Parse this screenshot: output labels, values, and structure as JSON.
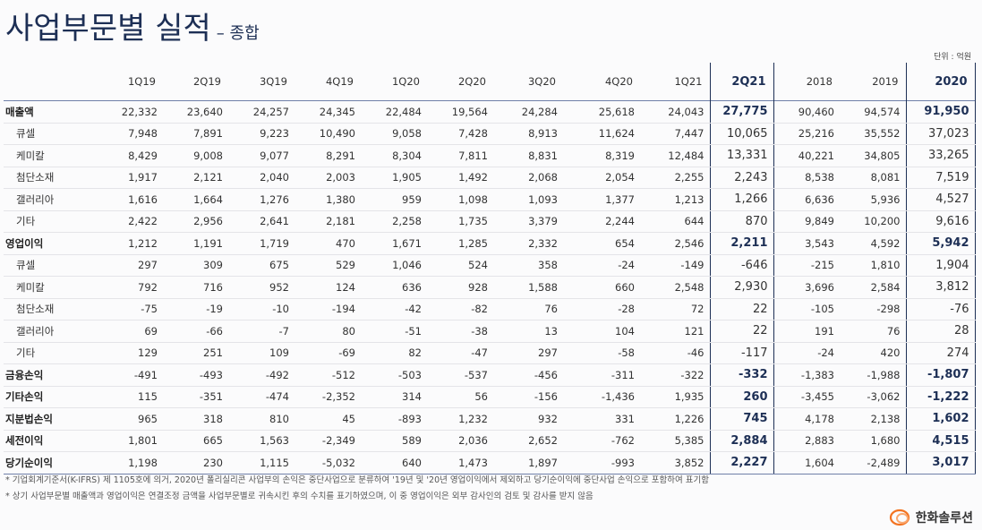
{
  "header": {
    "title": "사업부문별 실적",
    "subtitle": "– 종합",
    "unit": "단위 : 억원"
  },
  "table": {
    "columns": [
      "1Q19",
      "2Q19",
      "3Q19",
      "4Q19",
      "1Q20",
      "2Q20",
      "3Q20",
      "4Q20",
      "1Q21",
      "2Q21",
      "2018",
      "2019",
      "2020"
    ],
    "rows": [
      {
        "label": "매출액",
        "values": [
          "22,332",
          "23,640",
          "24,257",
          "24,345",
          "22,484",
          "19,564",
          "24,284",
          "25,618",
          "24,043",
          "27,775",
          "90,460",
          "94,574",
          "91,950"
        ],
        "items": [
          {
            "label": "큐셀",
            "values": [
              "7,948",
              "7,891",
              "9,223",
              "10,490",
              "9,058",
              "7,428",
              "8,913",
              "11,624",
              "7,447",
              "10,065",
              "25,216",
              "35,552",
              "37,023"
            ]
          },
          {
            "label": "케미칼",
            "values": [
              "8,429",
              "9,008",
              "9,077",
              "8,291",
              "8,304",
              "7,811",
              "8,831",
              "8,319",
              "12,484",
              "13,331",
              "40,221",
              "34,805",
              "33,265"
            ]
          },
          {
            "label": "첨단소재",
            "values": [
              "1,917",
              "2,121",
              "2,040",
              "2,003",
              "1,905",
              "1,492",
              "2,068",
              "2,054",
              "2,255",
              "2,243",
              "8,538",
              "8,081",
              "7,519"
            ]
          },
          {
            "label": "갤러리아",
            "values": [
              "1,616",
              "1,664",
              "1,276",
              "1,380",
              "959",
              "1,098",
              "1,093",
              "1,377",
              "1,213",
              "1,266",
              "6,636",
              "5,936",
              "4,527"
            ]
          },
          {
            "label": "기타",
            "values": [
              "2,422",
              "2,956",
              "2,641",
              "2,181",
              "2,258",
              "1,735",
              "3,379",
              "2,244",
              "644",
              "870",
              "9,849",
              "10,200",
              "9,616"
            ]
          }
        ]
      },
      {
        "label": "영업이익",
        "values": [
          "1,212",
          "1,191",
          "1,719",
          "470",
          "1,671",
          "1,285",
          "2,332",
          "654",
          "2,546",
          "2,211",
          "3,543",
          "4,592",
          "5,942"
        ],
        "items": [
          {
            "label": "큐셀",
            "values": [
              "297",
              "309",
              "675",
              "529",
              "1,046",
              "524",
              "358",
              "-24",
              "-149",
              "-646",
              "-215",
              "1,810",
              "1,904"
            ]
          },
          {
            "label": "케미칼",
            "values": [
              "792",
              "716",
              "952",
              "124",
              "636",
              "928",
              "1,588",
              "660",
              "2,548",
              "2,930",
              "3,696",
              "2,584",
              "3,812"
            ]
          },
          {
            "label": "첨단소재",
            "values": [
              "-75",
              "-19",
              "-10",
              "-194",
              "-42",
              "-82",
              "76",
              "-28",
              "72",
              "22",
              "-105",
              "-298",
              "-76"
            ]
          },
          {
            "label": "갤러리아",
            "values": [
              "69",
              "-66",
              "-7",
              "80",
              "-51",
              "-38",
              "13",
              "104",
              "121",
              "22",
              "191",
              "76",
              "28"
            ]
          },
          {
            "label": "기타",
            "values": [
              "129",
              "251",
              "109",
              "-69",
              "82",
              "-47",
              "297",
              "-58",
              "-46",
              "-117",
              "-24",
              "420",
              "274"
            ]
          }
        ]
      },
      {
        "label": "금융손익",
        "values": [
          "-491",
          "-493",
          "-492",
          "-512",
          "-503",
          "-537",
          "-456",
          "-311",
          "-322",
          "-332",
          "-1,383",
          "-1,988",
          "-1,807"
        ]
      },
      {
        "label": "기타손익",
        "values": [
          "115",
          "-351",
          "-474",
          "-2,352",
          "314",
          "56",
          "-156",
          "-1,436",
          "1,935",
          "260",
          "-3,455",
          "-3,062",
          "-1,222"
        ]
      },
      {
        "label": "지분법손익",
        "values": [
          "965",
          "318",
          "810",
          "45",
          "-893",
          "1,232",
          "932",
          "331",
          "1,226",
          "745",
          "4,178",
          "2,138",
          "1,602"
        ]
      },
      {
        "label": "세전이익",
        "values": [
          "1,801",
          "665",
          "1,563",
          "-2,349",
          "589",
          "2,036",
          "2,652",
          "-762",
          "5,385",
          "2,884",
          "2,883",
          "1,680",
          "4,515"
        ]
      },
      {
        "label": "당기순이익",
        "values": [
          "1,198",
          "230",
          "1,115",
          "-5,032",
          "640",
          "1,473",
          "1,897",
          "-993",
          "3,852",
          "2,227",
          "1,604",
          "-2,489",
          "3,017"
        ]
      }
    ]
  },
  "footnotes": [
    "* 기업회계기준서(K-IFRS) 제 1105호에 의거, 2020년 폴리실리콘 사업부의 손익은 중단사업으로 분류하여 '19년 및 '20년 영업이익에서 제외하고 당기순이익에 중단사업 손익으로 포함하여 표기함",
    "* 상기 사업부문별 매출액과 영업이익은 연결조정 금액을 사업부문별로 귀속시킨 후의 수치를 표기하였으며, 이 중 영업이익은 외부 감사인의 검토 및 감사를 받지 않음"
  ],
  "logo": "한화솔루션"
}
